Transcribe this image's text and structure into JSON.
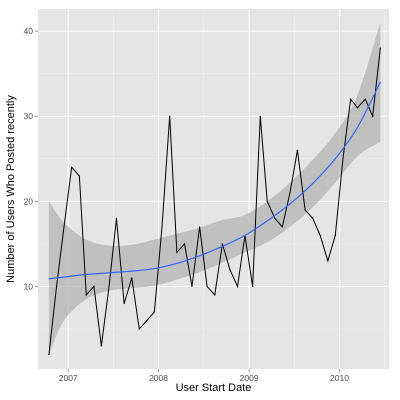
{
  "chart_data": {
    "type": "line",
    "title": "",
    "xlabel": "User Start Date",
    "ylabel": "Number of Users Who Posted recently",
    "xlim": [
      "2006-09-01",
      "2010-07-20"
    ],
    "ylim": [
      0.3,
      42.6
    ],
    "x_ticks": [
      {
        "date": "2007-01-01",
        "label": "2007"
      },
      {
        "date": "2008-01-01",
        "label": "2008"
      },
      {
        "date": "2009-01-01",
        "label": "2009"
      },
      {
        "date": "2010-01-01",
        "label": "2010"
      }
    ],
    "y_ticks": [
      10,
      20,
      30,
      40
    ],
    "grid": true,
    "panel_background": "#e5e5e5",
    "grid_color": "#ffffff",
    "series": [
      {
        "kind": "observed",
        "color": "#000000",
        "points": [
          [
            "2006-10",
            2
          ],
          [
            "2006-11",
            10
          ],
          [
            "2006-12",
            17
          ],
          [
            "2007-01",
            24
          ],
          [
            "2007-02",
            23
          ],
          [
            "2007-03",
            9
          ],
          [
            "2007-04",
            10
          ],
          [
            "2007-05",
            3
          ],
          [
            "2007-06",
            10
          ],
          [
            "2007-07",
            18
          ],
          [
            "2007-08",
            8
          ],
          [
            "2007-09",
            11
          ],
          [
            "2007-10",
            5
          ],
          [
            "2007-11",
            6
          ],
          [
            "2007-12",
            7
          ],
          [
            "2008-01",
            17
          ],
          [
            "2008-02",
            30
          ],
          [
            "2008-03",
            14
          ],
          [
            "2008-04",
            15
          ],
          [
            "2008-05",
            10
          ],
          [
            "2008-06",
            17
          ],
          [
            "2008-07",
            10
          ],
          [
            "2008-08",
            9
          ],
          [
            "2008-09",
            15
          ],
          [
            "2008-10",
            12
          ],
          [
            "2008-11",
            10
          ],
          [
            "2008-12",
            16
          ],
          [
            "2009-01",
            10
          ],
          [
            "2009-02",
            30
          ],
          [
            "2009-03",
            20
          ],
          [
            "2009-04",
            18
          ],
          [
            "2009-05",
            17
          ],
          [
            "2009-06",
            21
          ],
          [
            "2009-07",
            26
          ],
          [
            "2009-08",
            19
          ],
          [
            "2009-09",
            18
          ],
          [
            "2009-10",
            16
          ],
          [
            "2009-11",
            13
          ],
          [
            "2009-12",
            16
          ],
          [
            "2010-01",
            25
          ],
          [
            "2010-02",
            32
          ],
          [
            "2010-03",
            31
          ],
          [
            "2010-04",
            32
          ],
          [
            "2010-05",
            30
          ],
          [
            "2010-06",
            38
          ]
        ]
      },
      {
        "kind": "smooth",
        "color": "#3366ff",
        "band_color": "#b3b3b3",
        "points": [
          [
            "2006-10",
            10.9,
            2.0,
            20.0
          ],
          [
            "2006-12",
            11.1,
            6.0,
            17.5
          ],
          [
            "2007-03",
            11.4,
            8.5,
            15.5
          ],
          [
            "2007-06",
            11.6,
            9.5,
            14.8
          ],
          [
            "2007-09",
            11.8,
            9.8,
            14.9
          ],
          [
            "2007-12",
            12.1,
            10.1,
            15.5
          ],
          [
            "2008-03",
            12.7,
            10.8,
            16.2
          ],
          [
            "2008-06",
            13.6,
            11.7,
            16.9
          ],
          [
            "2008-09",
            14.7,
            12.8,
            17.8
          ],
          [
            "2008-12",
            16.0,
            14.0,
            18.4
          ],
          [
            "2009-03",
            17.7,
            15.2,
            20.0
          ],
          [
            "2009-06",
            19.7,
            17.0,
            22.2
          ],
          [
            "2009-09",
            22.1,
            19.3,
            24.9
          ],
          [
            "2009-12",
            25.0,
            22.2,
            28.0
          ],
          [
            "2010-03",
            28.7,
            25.3,
            32.5
          ],
          [
            "2010-06",
            34.0,
            27.0,
            41.0
          ]
        ]
      }
    ]
  }
}
